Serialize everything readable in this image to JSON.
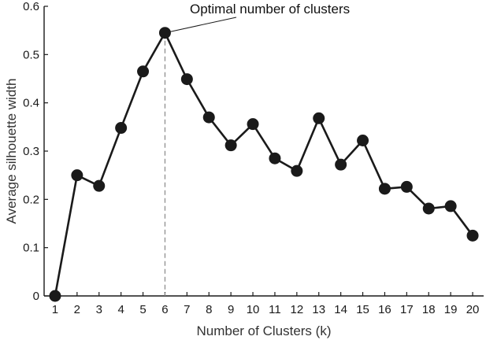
{
  "chart_data": {
    "type": "line",
    "title": "",
    "xlabel": "Number of Clusters (k)",
    "ylabel": "Average silhouette width",
    "x": [
      1,
      2,
      3,
      4,
      5,
      6,
      7,
      8,
      9,
      10,
      11,
      12,
      13,
      14,
      15,
      16,
      17,
      18,
      19,
      20
    ],
    "series": [
      {
        "values": [
          0.0,
          0.25,
          0.228,
          0.348,
          0.465,
          0.545,
          0.449,
          0.37,
          0.312,
          0.356,
          0.285,
          0.259,
          0.368,
          0.272,
          0.322,
          0.222,
          0.226,
          0.181,
          0.186,
          0.125
        ]
      }
    ],
    "xlim": [
      0.5,
      20.5
    ],
    "ylim": [
      0,
      0.6
    ],
    "xticks": [
      "1",
      "2",
      "3",
      "4",
      "5",
      "6",
      "7",
      "8",
      "9",
      "10",
      "11",
      "12",
      "13",
      "14",
      "15",
      "16",
      "17",
      "18",
      "19",
      "20"
    ],
    "yticks": [
      "0",
      "0.1",
      "0.2",
      "0.3",
      "0.4",
      "0.5",
      "0.6"
    ],
    "grid": false,
    "annotations": [
      {
        "text": "Optimal number of clusters",
        "x": 6,
        "y": 0.545
      }
    ],
    "reference_line": {
      "x": 6,
      "style": "dashed"
    },
    "colors": {
      "line": "#1a1a1a",
      "marker": "#1a1a1a",
      "axis": "#1a1a1a",
      "reference": "#888888"
    }
  }
}
